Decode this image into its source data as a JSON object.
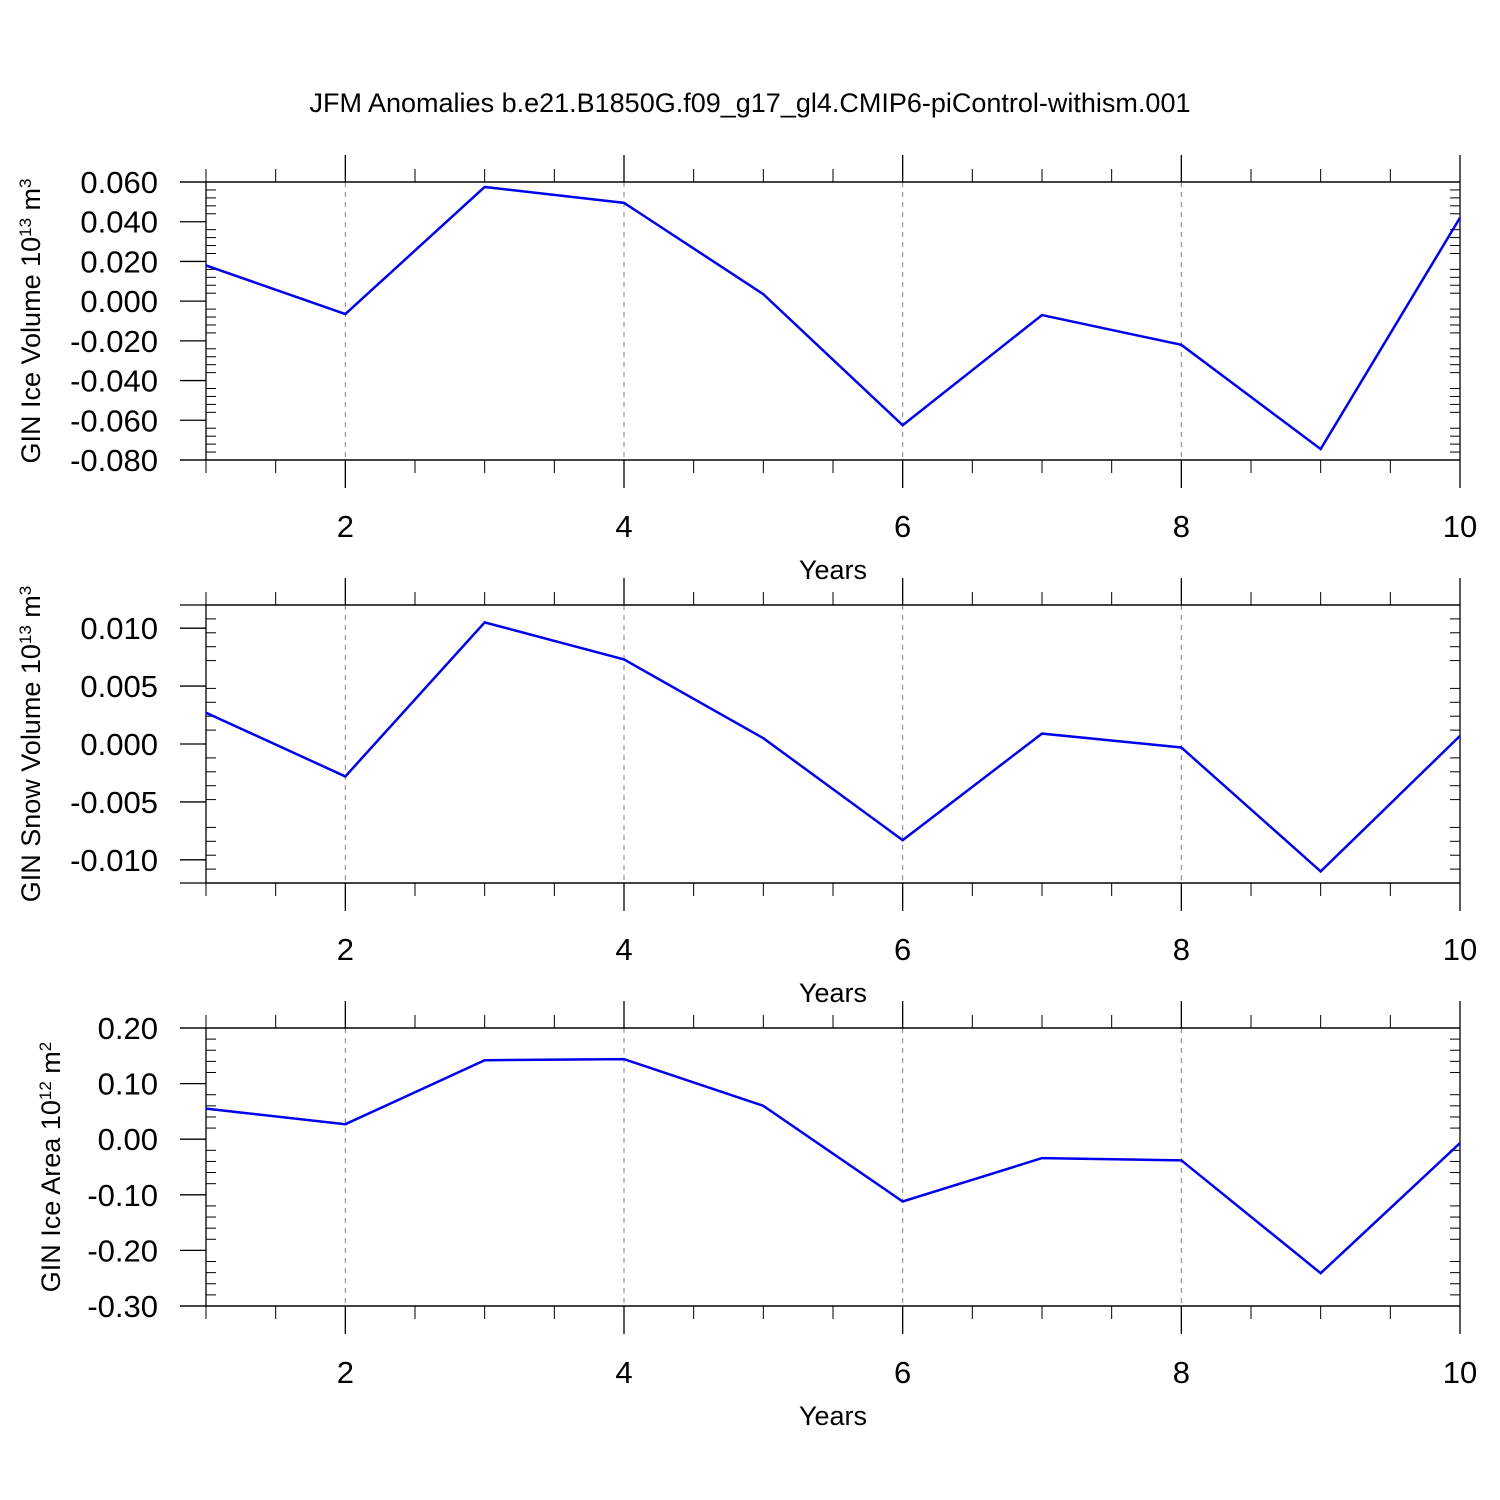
{
  "title": "JFM Anomalies b.e21.B1850G.f09_g17_gl4.CMIP6-piControl-withism.001",
  "colors": {
    "line": "#0000ee",
    "frame": "#000000",
    "grid": "#7f7f7f"
  },
  "chart_data": [
    {
      "type": "line",
      "xlabel": "Years",
      "ylabel": {
        "text": "GIN Ice Volume 10",
        "sup": "13",
        "unit": " m",
        "unit_sup": "3"
      },
      "xlim": [
        1,
        10
      ],
      "ylim": [
        -0.08,
        0.06
      ],
      "xticks": [
        2,
        4,
        6,
        8,
        10
      ],
      "xtick_labels": [
        "2",
        "4",
        "6",
        "8",
        "10"
      ],
      "yticks": [
        0.06,
        0.04,
        0.02,
        0.0,
        -0.02,
        -0.04,
        -0.06,
        -0.08
      ],
      "ytick_labels": [
        "0.060",
        "0.040",
        "0.020",
        "0.000",
        "-0.020",
        "-0.040",
        "-0.060",
        "-0.080"
      ],
      "grid": "x-dashed",
      "x": [
        1,
        2,
        3,
        4,
        5,
        6,
        7,
        8,
        9,
        10
      ],
      "y": [
        0.018,
        -0.0065,
        0.0575,
        0.0495,
        0.0035,
        -0.0625,
        -0.007,
        -0.022,
        -0.0745,
        0.042
      ]
    },
    {
      "type": "line",
      "xlabel": "Years",
      "ylabel": {
        "text": "GIN Snow Volume 10",
        "sup": "13",
        "unit": " m",
        "unit_sup": "3"
      },
      "xlim": [
        1,
        10
      ],
      "ylim": [
        -0.012,
        0.012
      ],
      "xticks": [
        2,
        4,
        6,
        8,
        10
      ],
      "xtick_labels": [
        "2",
        "4",
        "6",
        "8",
        "10"
      ],
      "yticks": [
        0.01,
        0.005,
        0.0,
        -0.005,
        -0.01
      ],
      "ytick_labels": [
        "0.010",
        "0.005",
        "0.000",
        "-0.005",
        "-0.010"
      ],
      "grid": "x-dashed",
      "x": [
        1,
        2,
        3,
        4,
        5,
        6,
        7,
        8,
        9,
        10
      ],
      "y": [
        0.0027,
        -0.0028,
        0.0105,
        0.0073,
        0.0005,
        -0.0083,
        0.0009,
        -0.0003,
        -0.011,
        0.0007
      ]
    },
    {
      "type": "line",
      "xlabel": "Years",
      "ylabel": {
        "text": "GIN Ice Area 10",
        "sup": "12",
        "unit": " m",
        "unit_sup": "2"
      },
      "xlim": [
        1,
        10
      ],
      "ylim": [
        -0.3,
        0.2
      ],
      "xticks": [
        2,
        4,
        6,
        8,
        10
      ],
      "xtick_labels": [
        "2",
        "4",
        "6",
        "8",
        "10"
      ],
      "yticks": [
        0.2,
        0.1,
        0.0,
        -0.1,
        -0.2,
        -0.3
      ],
      "ytick_labels": [
        "0.20",
        "0.10",
        "0.00",
        "-0.10",
        "-0.20",
        "-0.30"
      ],
      "grid": "x-dashed",
      "x": [
        1,
        2,
        3,
        4,
        5,
        6,
        7,
        8,
        9,
        10
      ],
      "y": [
        0.055,
        0.027,
        0.142,
        0.144,
        0.06,
        -0.112,
        -0.034,
        -0.038,
        -0.241,
        -0.007
      ]
    }
  ]
}
